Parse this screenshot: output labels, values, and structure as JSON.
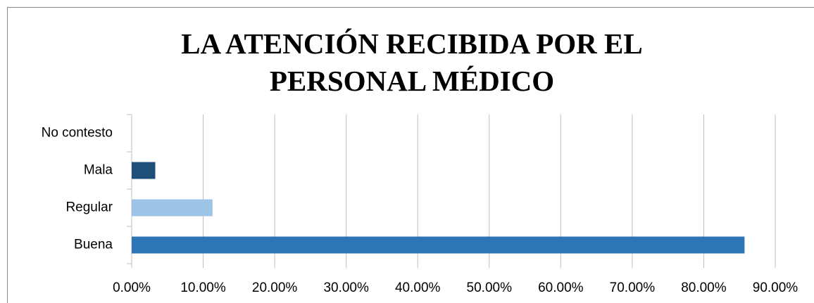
{
  "chart_data": {
    "type": "barh",
    "title": "LA ATENCIÓN RECIBIDA POR EL PERSONAL MÉDICO",
    "categories": [
      "Buena",
      "Regular",
      "Mala",
      "No contesto"
    ],
    "values": [
      85.7,
      11.3,
      3.3,
      0
    ],
    "colors": [
      "#2e75b6",
      "#9dc3e6",
      "#1f4e79",
      "#7f7f7f"
    ],
    "xlim": [
      0,
      90
    ],
    "xticks": [
      {
        "value": 0,
        "label": "0.00%"
      },
      {
        "value": 10,
        "label": "10.00%"
      },
      {
        "value": 20,
        "label": "20.00%"
      },
      {
        "value": 30,
        "label": "30.00%"
      },
      {
        "value": 40,
        "label": "40.00%"
      },
      {
        "value": 50,
        "label": "50.00%"
      },
      {
        "value": 60,
        "label": "60.00%"
      },
      {
        "value": 70,
        "label": "70.00%"
      },
      {
        "value": 80,
        "label": "80.00%"
      },
      {
        "value": 90,
        "label": "90.00%"
      }
    ],
    "grid": true
  }
}
